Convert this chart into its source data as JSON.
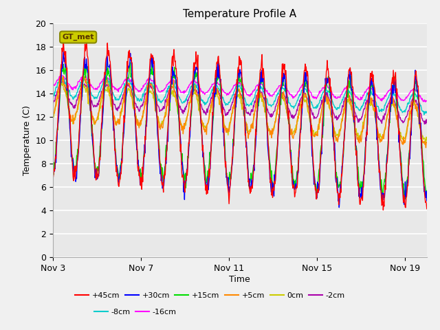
{
  "title": "Temperature Profile A",
  "xlabel": "Time",
  "ylabel": "Temperature (C)",
  "ylim": [
    0,
    20
  ],
  "xlim": [
    0,
    17
  ],
  "xtick_positions": [
    0,
    4,
    8,
    12,
    16
  ],
  "xtick_labels": [
    "Nov 3",
    "Nov 7",
    "Nov 11",
    "Nov 15",
    "Nov 19"
  ],
  "ytick_positions": [
    0,
    2,
    4,
    6,
    8,
    10,
    12,
    14,
    16,
    18,
    20
  ],
  "series_colors": {
    "+45cm": "#ff0000",
    "+30cm": "#0000ff",
    "+15cm": "#00dd00",
    "+5cm": "#ff8800",
    "0cm": "#cccc00",
    "-2cm": "#aa00aa",
    "-8cm": "#00cccc",
    "-16cm": "#ff00ff"
  },
  "legend_label": "GT_met",
  "legend_box_facecolor": "#cccc00",
  "legend_box_edgecolor": "#888800",
  "plot_bg": "#e8e8e8",
  "fig_bg": "#f0f0f0",
  "grid_color": "#ffffff",
  "title_fontsize": 11
}
